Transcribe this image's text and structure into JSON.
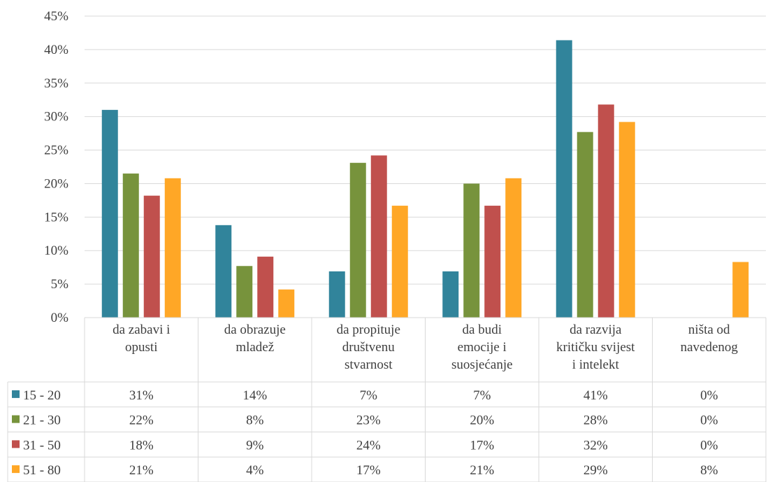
{
  "chart_data": {
    "type": "bar",
    "categories": [
      [
        "da zabavi i",
        "opusti"
      ],
      [
        "da obrazuje",
        "mladež"
      ],
      [
        "da propituje",
        "društvenu",
        "stvarnost"
      ],
      [
        "da budi",
        "emocije i",
        "suosjećanje"
      ],
      [
        "da razvija",
        "kritičku svijest",
        "i intelekt"
      ],
      [
        "ništa od",
        "navedenog"
      ]
    ],
    "series": [
      {
        "name": "15 - 20",
        "color": "#31849B",
        "values": [
          31.0,
          13.8,
          6.9,
          6.9,
          41.4,
          0
        ],
        "labels": [
          "31%",
          "14%",
          "7%",
          "7%",
          "41%",
          "0%"
        ]
      },
      {
        "name": "21 - 30",
        "color": "#77933C",
        "values": [
          21.5,
          7.7,
          23.1,
          20.0,
          27.7,
          0
        ],
        "labels": [
          "22%",
          "8%",
          "23%",
          "20%",
          "28%",
          "0%"
        ]
      },
      {
        "name": "31 - 50",
        "color": "#C0504D",
        "values": [
          18.2,
          9.1,
          24.2,
          16.7,
          31.8,
          0
        ],
        "labels": [
          "18%",
          "9%",
          "24%",
          "17%",
          "32%",
          "0%"
        ]
      },
      {
        "name": "51 - 80",
        "color": "#FFA726",
        "values": [
          20.8,
          4.2,
          16.7,
          20.8,
          29.2,
          8.3
        ],
        "labels": [
          "21%",
          "4%",
          "17%",
          "21%",
          "29%",
          "8%"
        ]
      }
    ],
    "ylim": [
      0,
      45
    ],
    "yticks": [
      "0%",
      "5%",
      "10%",
      "15%",
      "20%",
      "25%",
      "30%",
      "35%",
      "40%",
      "45%"
    ],
    "grid": true,
    "legend": "data-table",
    "title": "",
    "xlabel": "",
    "ylabel": ""
  }
}
